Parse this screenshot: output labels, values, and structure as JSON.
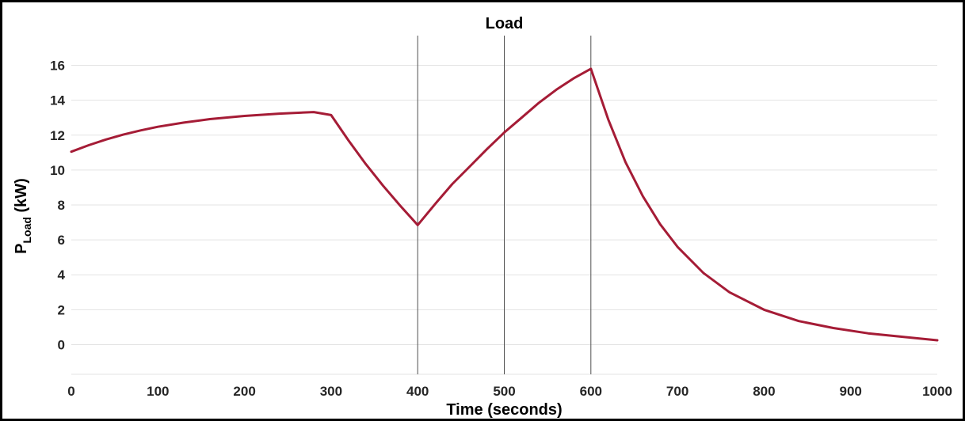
{
  "chart_data": {
    "type": "line",
    "title": "Load",
    "xlabel": "Time (seconds)",
    "ylabel": {
      "main": "P",
      "subscript": "Load",
      "unit": " (kW)"
    },
    "xlim": [
      0,
      1000
    ],
    "ylim": [
      -1.7,
      17.7
    ],
    "xticks": [
      0,
      100,
      200,
      300,
      400,
      500,
      600,
      700,
      800,
      900,
      1000
    ],
    "yticks": [
      0,
      2,
      4,
      6,
      8,
      10,
      12,
      14,
      16
    ],
    "grid": true,
    "legend": "none",
    "vertical_markers": [
      400,
      500,
      600
    ],
    "colors": {
      "line": "#a51c36",
      "grid": "#e3e3e3",
      "marker": "#505050"
    },
    "series": [
      {
        "x": [
          0,
          20,
          40,
          60,
          80,
          100,
          130,
          160,
          200,
          240,
          280,
          300,
          320,
          340,
          360,
          380,
          400,
          420,
          440,
          460,
          480,
          500,
          520,
          540,
          560,
          580,
          600,
          620,
          640,
          660,
          680,
          700,
          730,
          760,
          800,
          840,
          880,
          920,
          960,
          1000
        ],
        "y": [
          11.05,
          11.42,
          11.75,
          12.03,
          12.27,
          12.48,
          12.72,
          12.92,
          13.1,
          13.23,
          13.32,
          13.15,
          11.7,
          10.35,
          9.1,
          7.95,
          6.85,
          8.05,
          9.2,
          10.2,
          11.2,
          12.15,
          13.0,
          13.85,
          14.6,
          15.25,
          15.8,
          12.9,
          10.45,
          8.5,
          6.9,
          5.6,
          4.1,
          3.0,
          2.0,
          1.35,
          0.95,
          0.65,
          0.45,
          0.25
        ]
      }
    ]
  }
}
